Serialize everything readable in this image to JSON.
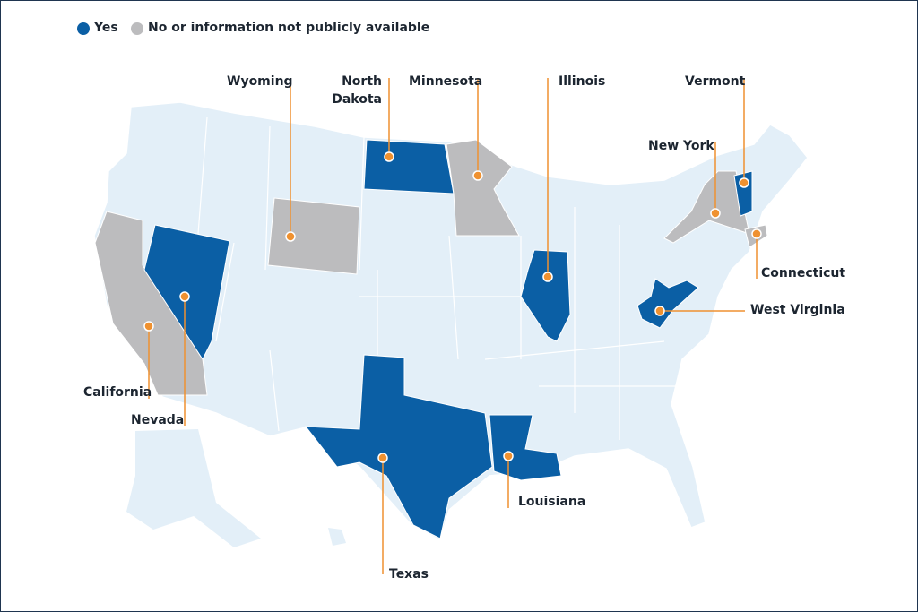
{
  "legend": [
    {
      "label": "Yes",
      "color": "#0b5fa5"
    },
    {
      "label": "No or information not publicly available",
      "color": "#bcbcbe"
    }
  ],
  "states": [
    {
      "name": "Wyoming",
      "color": "#bcbcbe"
    },
    {
      "name": "North Dakota",
      "color": "#0b5fa5"
    },
    {
      "name": "Minnesota",
      "color": "#bcbcbe"
    },
    {
      "name": "Illinois",
      "color": "#0b5fa5"
    },
    {
      "name": "Vermont",
      "color": "#0b5fa5"
    },
    {
      "name": "New York",
      "color": "#bcbcbe"
    },
    {
      "name": "Connecticut",
      "color": "#bcbcbe"
    },
    {
      "name": "West Virginia",
      "color": "#0b5fa5"
    },
    {
      "name": "California",
      "color": "#bcbcbe"
    },
    {
      "name": "Nevada",
      "color": "#0b5fa5"
    },
    {
      "name": "Texas",
      "color": "#0b5fa5"
    },
    {
      "name": "Louisiana",
      "color": "#0b5fa5"
    }
  ]
}
